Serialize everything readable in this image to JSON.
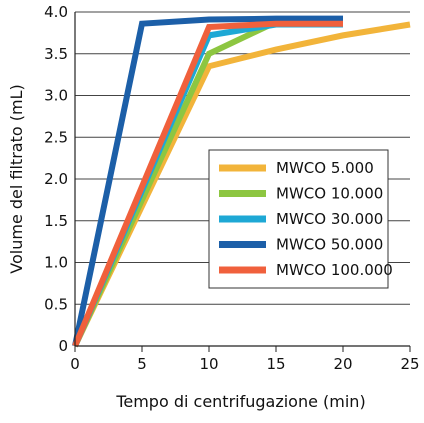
{
  "chart_data": {
    "type": "line",
    "title": "",
    "xlabel": "Tempo di centrifugazione (min)",
    "ylabel": "Volume del filtrato (mL)",
    "xlim": [
      0,
      25
    ],
    "ylim": [
      0,
      4.0
    ],
    "x_ticks": [
      0,
      5,
      10,
      15,
      20,
      25
    ],
    "y_ticks": [
      0,
      0.5,
      1.0,
      1.5,
      2.0,
      2.5,
      3.0,
      3.5,
      4.0
    ],
    "x_tick_labels": [
      "0",
      "5",
      "10",
      "15",
      "20",
      "25"
    ],
    "y_tick_labels": [
      "0",
      "0.5",
      "1.0",
      "1.5",
      "2.0",
      "2.5",
      "3.0",
      "3.5",
      "4.0"
    ],
    "grid": "horizontal",
    "legend_position": "right-center",
    "series": [
      {
        "name": "MWCO 5.000",
        "color": "#F2B43A",
        "points": [
          [
            0,
            0
          ],
          [
            10,
            3.35
          ],
          [
            15,
            3.55
          ],
          [
            20,
            3.72
          ],
          [
            25,
            3.85
          ]
        ]
      },
      {
        "name": "MWCO 10.000",
        "color": "#8DC641",
        "points": [
          [
            0,
            0
          ],
          [
            10,
            3.5
          ],
          [
            15,
            3.88
          ],
          [
            20,
            3.88
          ]
        ]
      },
      {
        "name": "MWCO 30.000",
        "color": "#1EA8D5",
        "points": [
          [
            0,
            0
          ],
          [
            10,
            3.72
          ],
          [
            15,
            3.85
          ],
          [
            20,
            3.85
          ]
        ]
      },
      {
        "name": "MWCO 50.000",
        "color": "#1C5FA8",
        "points": [
          [
            0,
            0
          ],
          [
            5,
            3.86
          ],
          [
            10,
            3.91
          ],
          [
            15,
            3.92
          ],
          [
            20,
            3.92
          ]
        ]
      },
      {
        "name": "MWCO 100.000",
        "color": "#F0603C",
        "points": [
          [
            0,
            0
          ],
          [
            10,
            3.82
          ],
          [
            15,
            3.86
          ],
          [
            20,
            3.86
          ]
        ]
      }
    ]
  }
}
